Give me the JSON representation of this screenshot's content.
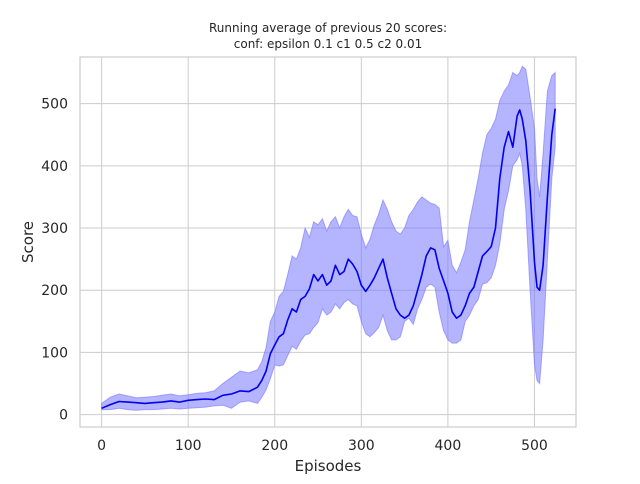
{
  "chart_data": {
    "type": "line",
    "title": [
      "Running average of previous 20 scores:",
      "conf: epsilon 0.1 c1 0.5 c2 0.01"
    ],
    "xlabel": "Episodes",
    "ylabel": "Score",
    "xlim": [
      -25,
      548
    ],
    "ylim": [
      -20,
      575
    ],
    "xticks": [
      0,
      100,
      200,
      300,
      400,
      500
    ],
    "yticks": [
      0,
      100,
      200,
      300,
      400,
      500
    ],
    "grid": true,
    "legend": "none",
    "colors": {
      "line": "#0000ee",
      "band": "#7777ff",
      "grid": "#cccccc",
      "spine": "#cccccc",
      "text": "#262626"
    },
    "series": [
      {
        "kind": "line",
        "x": [
          0,
          10,
          20,
          30,
          40,
          50,
          60,
          70,
          80,
          90,
          100,
          110,
          120,
          130,
          140,
          150,
          160,
          170,
          180,
          185,
          190,
          195,
          200,
          205,
          210,
          215,
          220,
          225,
          230,
          235,
          240,
          245,
          250,
          255,
          260,
          265,
          270,
          275,
          280,
          285,
          290,
          295,
          300,
          305,
          310,
          315,
          320,
          325,
          330,
          335,
          340,
          345,
          350,
          355,
          360,
          365,
          370,
          375,
          380,
          385,
          390,
          395,
          400,
          405,
          410,
          415,
          420,
          425,
          430,
          435,
          440,
          445,
          450,
          455,
          460,
          465,
          470,
          475,
          480,
          483,
          486,
          490,
          495,
          500,
          503,
          506,
          510,
          515,
          520,
          524
        ],
        "y": [
          10,
          16,
          21,
          20,
          19,
          18,
          19,
          20,
          22,
          20,
          23,
          24,
          25,
          24,
          31,
          33,
          38,
          37,
          44,
          55,
          70,
          98,
          112,
          125,
          130,
          152,
          170,
          165,
          185,
          190,
          202,
          225,
          215,
          225,
          208,
          215,
          240,
          225,
          230,
          250,
          242,
          230,
          208,
          198,
          208,
          220,
          235,
          250,
          220,
          195,
          170,
          160,
          155,
          160,
          175,
          200,
          225,
          255,
          268,
          265,
          235,
          215,
          195,
          165,
          155,
          160,
          175,
          195,
          205,
          230,
          255,
          262,
          270,
          300,
          380,
          430,
          455,
          430,
          480,
          490,
          475,
          440,
          360,
          245,
          205,
          200,
          240,
          350,
          450,
          492
        ]
      },
      {
        "kind": "band",
        "x": [
          0,
          10,
          20,
          30,
          40,
          50,
          60,
          70,
          80,
          90,
          100,
          110,
          120,
          130,
          140,
          150,
          160,
          170,
          180,
          185,
          190,
          195,
          200,
          205,
          210,
          215,
          220,
          225,
          230,
          235,
          240,
          245,
          250,
          255,
          260,
          265,
          270,
          275,
          280,
          285,
          290,
          295,
          300,
          305,
          310,
          315,
          320,
          325,
          330,
          335,
          340,
          345,
          350,
          355,
          360,
          365,
          370,
          375,
          380,
          385,
          390,
          395,
          400,
          405,
          410,
          415,
          420,
          425,
          430,
          435,
          440,
          445,
          450,
          455,
          460,
          465,
          470,
          475,
          480,
          483,
          486,
          490,
          495,
          500,
          503,
          506,
          510,
          515,
          520,
          524
        ],
        "upper": [
          18,
          28,
          33,
          30,
          27,
          28,
          29,
          31,
          33,
          30,
          32,
          34,
          35,
          38,
          50,
          60,
          70,
          67,
          72,
          85,
          108,
          150,
          165,
          190,
          198,
          225,
          255,
          250,
          268,
          300,
          285,
          310,
          305,
          315,
          295,
          310,
          318,
          300,
          318,
          330,
          320,
          318,
          290,
          268,
          282,
          305,
          322,
          345,
          330,
          310,
          295,
          290,
          300,
          320,
          330,
          342,
          350,
          345,
          340,
          338,
          332,
          270,
          280,
          240,
          228,
          245,
          265,
          310,
          345,
          380,
          420,
          450,
          460,
          475,
          505,
          520,
          530,
          550,
          545,
          550,
          560,
          555,
          510,
          460,
          380,
          350,
          420,
          520,
          545,
          550
        ],
        "lower": [
          8,
          8,
          10,
          8,
          7,
          8,
          8,
          9,
          10,
          9,
          10,
          11,
          12,
          14,
          15,
          10,
          20,
          22,
          18,
          28,
          40,
          58,
          80,
          78,
          80,
          95,
          110,
          105,
          118,
          128,
          130,
          140,
          148,
          170,
          160,
          165,
          178,
          170,
          180,
          185,
          178,
          175,
          150,
          130,
          125,
          132,
          140,
          160,
          135,
          120,
          120,
          125,
          150,
          155,
          145,
          170,
          185,
          205,
          210,
          205,
          165,
          135,
          120,
          115,
          115,
          120,
          150,
          160,
          175,
          185,
          210,
          212,
          220,
          240,
          275,
          330,
          360,
          400,
          410,
          420,
          400,
          330,
          200,
          80,
          55,
          50,
          120,
          250,
          380,
          430
        ]
      }
    ]
  }
}
